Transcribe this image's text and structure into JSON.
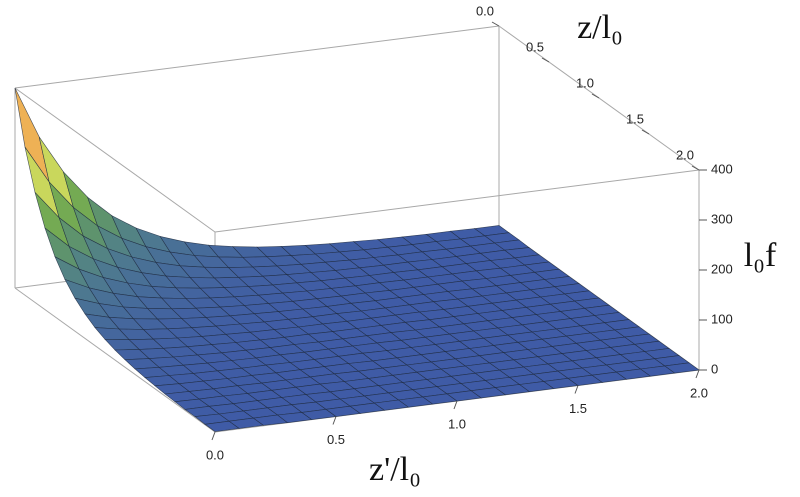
{
  "chart_data": {
    "type": "surface",
    "x_label": "z'/l₀",
    "y_label": "z/l₀",
    "z_label": "l₀f",
    "x": [
      0,
      0.1,
      0.2,
      0.3,
      0.4,
      0.5,
      0.6,
      0.7,
      0.8,
      0.9,
      1,
      1.1,
      1.2,
      1.3,
      1.4,
      1.5,
      1.6,
      1.7,
      1.8,
      1.9,
      2
    ],
    "y": [
      0,
      0.1,
      0.2,
      0.3,
      0.4,
      0.5,
      0.6,
      0.7,
      0.8,
      0.9,
      1,
      1.1,
      1.2,
      1.3,
      1.4,
      1.5,
      1.6,
      1.7,
      1.8,
      1.9,
      2
    ],
    "values": [
      [
        400,
        296,
        220,
        163,
        120,
        89,
        66,
        49,
        36,
        27,
        20,
        15,
        11,
        8,
        6,
        4,
        3,
        2,
        2,
        1,
        1
      ],
      [
        296,
        220,
        163,
        120,
        89,
        66,
        49,
        36,
        27,
        20,
        15,
        11,
        8,
        6,
        4,
        3,
        2,
        2,
        1,
        1,
        1
      ],
      [
        220,
        163,
        120,
        89,
        66,
        49,
        36,
        27,
        20,
        15,
        11,
        8,
        6,
        4,
        3,
        2,
        2,
        1,
        1,
        1,
        1
      ],
      [
        163,
        120,
        89,
        66,
        49,
        36,
        27,
        20,
        15,
        11,
        8,
        6,
        4,
        3,
        2,
        2,
        1,
        1,
        1,
        1,
        0
      ],
      [
        120,
        89,
        66,
        49,
        36,
        27,
        20,
        15,
        11,
        8,
        6,
        4,
        3,
        2,
        2,
        1,
        1,
        1,
        1,
        0,
        0
      ],
      [
        89,
        66,
        49,
        36,
        27,
        20,
        15,
        11,
        8,
        6,
        4,
        3,
        2,
        2,
        1,
        1,
        1,
        1,
        0,
        0,
        0
      ],
      [
        66,
        49,
        36,
        27,
        20,
        15,
        11,
        8,
        6,
        4,
        3,
        2,
        2,
        1,
        1,
        1,
        1,
        0,
        0,
        0,
        0
      ],
      [
        49,
        36,
        27,
        20,
        15,
        11,
        8,
        6,
        4,
        3,
        2,
        2,
        1,
        1,
        1,
        1,
        0,
        0,
        0,
        0,
        0
      ],
      [
        36,
        27,
        20,
        15,
        11,
        8,
        6,
        4,
        3,
        2,
        2,
        1,
        1,
        1,
        1,
        0,
        0,
        0,
        0,
        0,
        0
      ],
      [
        27,
        20,
        15,
        11,
        8,
        6,
        4,
        3,
        2,
        2,
        1,
        1,
        1,
        1,
        0,
        0,
        0,
        0,
        0,
        0,
        0
      ],
      [
        20,
        15,
        11,
        8,
        6,
        4,
        3,
        2,
        2,
        1,
        1,
        1,
        1,
        0,
        0,
        0,
        0,
        0,
        0,
        0,
        0
      ],
      [
        15,
        11,
        8,
        6,
        4,
        3,
        2,
        2,
        1,
        1,
        1,
        1,
        0,
        0,
        0,
        0,
        0,
        0,
        0,
        0,
        0
      ],
      [
        11,
        8,
        6,
        4,
        3,
        2,
        2,
        1,
        1,
        1,
        1,
        0,
        0,
        0,
        0,
        0,
        0,
        0,
        0,
        0,
        0
      ],
      [
        8,
        6,
        4,
        3,
        2,
        2,
        1,
        1,
        1,
        1,
        0,
        0,
        0,
        0,
        0,
        0,
        0,
        0,
        0,
        0,
        0
      ],
      [
        6,
        4,
        3,
        2,
        2,
        1,
        1,
        1,
        1,
        0,
        0,
        0,
        0,
        0,
        0,
        0,
        0,
        0,
        0,
        0,
        0
      ],
      [
        4,
        3,
        2,
        2,
        1,
        1,
        1,
        1,
        0,
        0,
        0,
        0,
        0,
        0,
        0,
        0,
        0,
        0,
        0,
        0,
        0
      ],
      [
        3,
        2,
        2,
        1,
        1,
        1,
        1,
        0,
        0,
        0,
        0,
        0,
        0,
        0,
        0,
        0,
        0,
        0,
        0,
        0,
        0
      ],
      [
        2,
        2,
        1,
        1,
        1,
        1,
        0,
        0,
        0,
        0,
        0,
        0,
        0,
        0,
        0,
        0,
        0,
        0,
        0,
        0,
        0
      ],
      [
        2,
        1,
        1,
        1,
        1,
        0,
        0,
        0,
        0,
        0,
        0,
        0,
        0,
        0,
        0,
        0,
        0,
        0,
        0,
        0,
        0
      ],
      [
        1,
        1,
        1,
        1,
        0,
        0,
        0,
        0,
        0,
        0,
        0,
        0,
        0,
        0,
        0,
        0,
        0,
        0,
        0,
        0,
        0
      ],
      [
        1,
        1,
        1,
        0,
        0,
        0,
        0,
        0,
        0,
        0,
        0,
        0,
        0,
        0,
        0,
        0,
        0,
        0,
        0,
        0,
        0
      ]
    ],
    "xlim": [
      0,
      2
    ],
    "ylim": [
      0,
      2
    ],
    "zlim": [
      0,
      400
    ],
    "xticks": [
      {
        "value": 0,
        "label": "0.0"
      },
      0.5,
      {
        "value": 1,
        "label": "1.0"
      },
      1.5,
      {
        "value": 2,
        "label": "2.0"
      }
    ],
    "yticks": [
      {
        "value": 0,
        "label": "0.0"
      },
      0.5,
      {
        "value": 1,
        "label": "1.0"
      },
      1.5,
      {
        "value": 2,
        "label": "2.0"
      }
    ],
    "zticks": [
      0,
      100,
      200,
      300,
      400
    ],
    "colorscale": [
      "#3f5ba6",
      "#4f7d8c",
      "#6aa552",
      "#dfe35e",
      "#f2a352",
      "#e8463a"
    ],
    "mesh": true
  }
}
